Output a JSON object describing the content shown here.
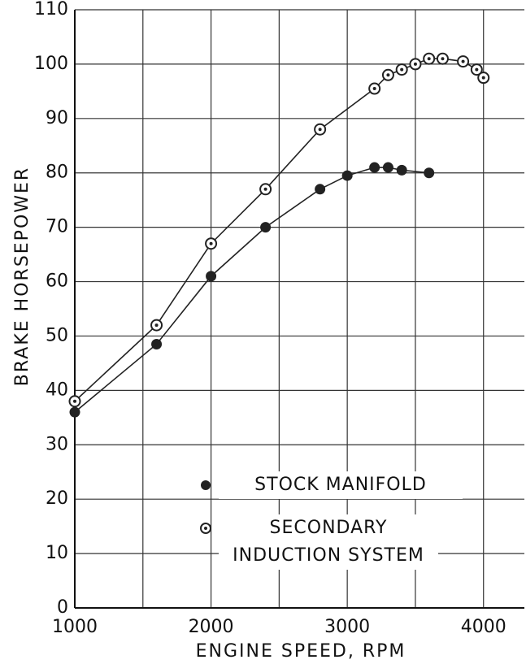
{
  "chart_data": {
    "type": "line",
    "xlabel": "ENGINE SPEED, RPM",
    "ylabel": "BRAKE HORSEPOWER",
    "xlim": [
      1000,
      4300
    ],
    "xticks": [
      1000,
      2000,
      3000,
      4000
    ],
    "xgrid": [
      1000,
      1500,
      2000,
      2500,
      3000,
      3500,
      4000
    ],
    "ylim": [
      0,
      110
    ],
    "yticks": [
      0,
      10,
      20,
      30,
      40,
      50,
      60,
      70,
      80,
      90,
      100,
      110
    ],
    "grid": true,
    "series": [
      {
        "name": "STOCK MANIFOLD",
        "color": "#222",
        "marker": "filled",
        "x": [
          1000,
          1600,
          2000,
          2400,
          2800,
          3000,
          3200,
          3300,
          3400,
          3600
        ],
        "values": [
          36,
          48.5,
          61,
          70,
          77,
          79.5,
          81,
          81,
          80.5,
          80
        ]
      },
      {
        "name": "SECONDARY INDUCTION SYSTEM",
        "color": "#222",
        "marker": "dotted",
        "x": [
          1000,
          1600,
          2000,
          2400,
          2800,
          3200,
          3300,
          3400,
          3500,
          3600,
          3700,
          3850,
          3950,
          4000
        ],
        "values": [
          38,
          52,
          67,
          77,
          88,
          95.5,
          98,
          99,
          100,
          101,
          101,
          100.5,
          99,
          97.5
        ]
      }
    ]
  }
}
